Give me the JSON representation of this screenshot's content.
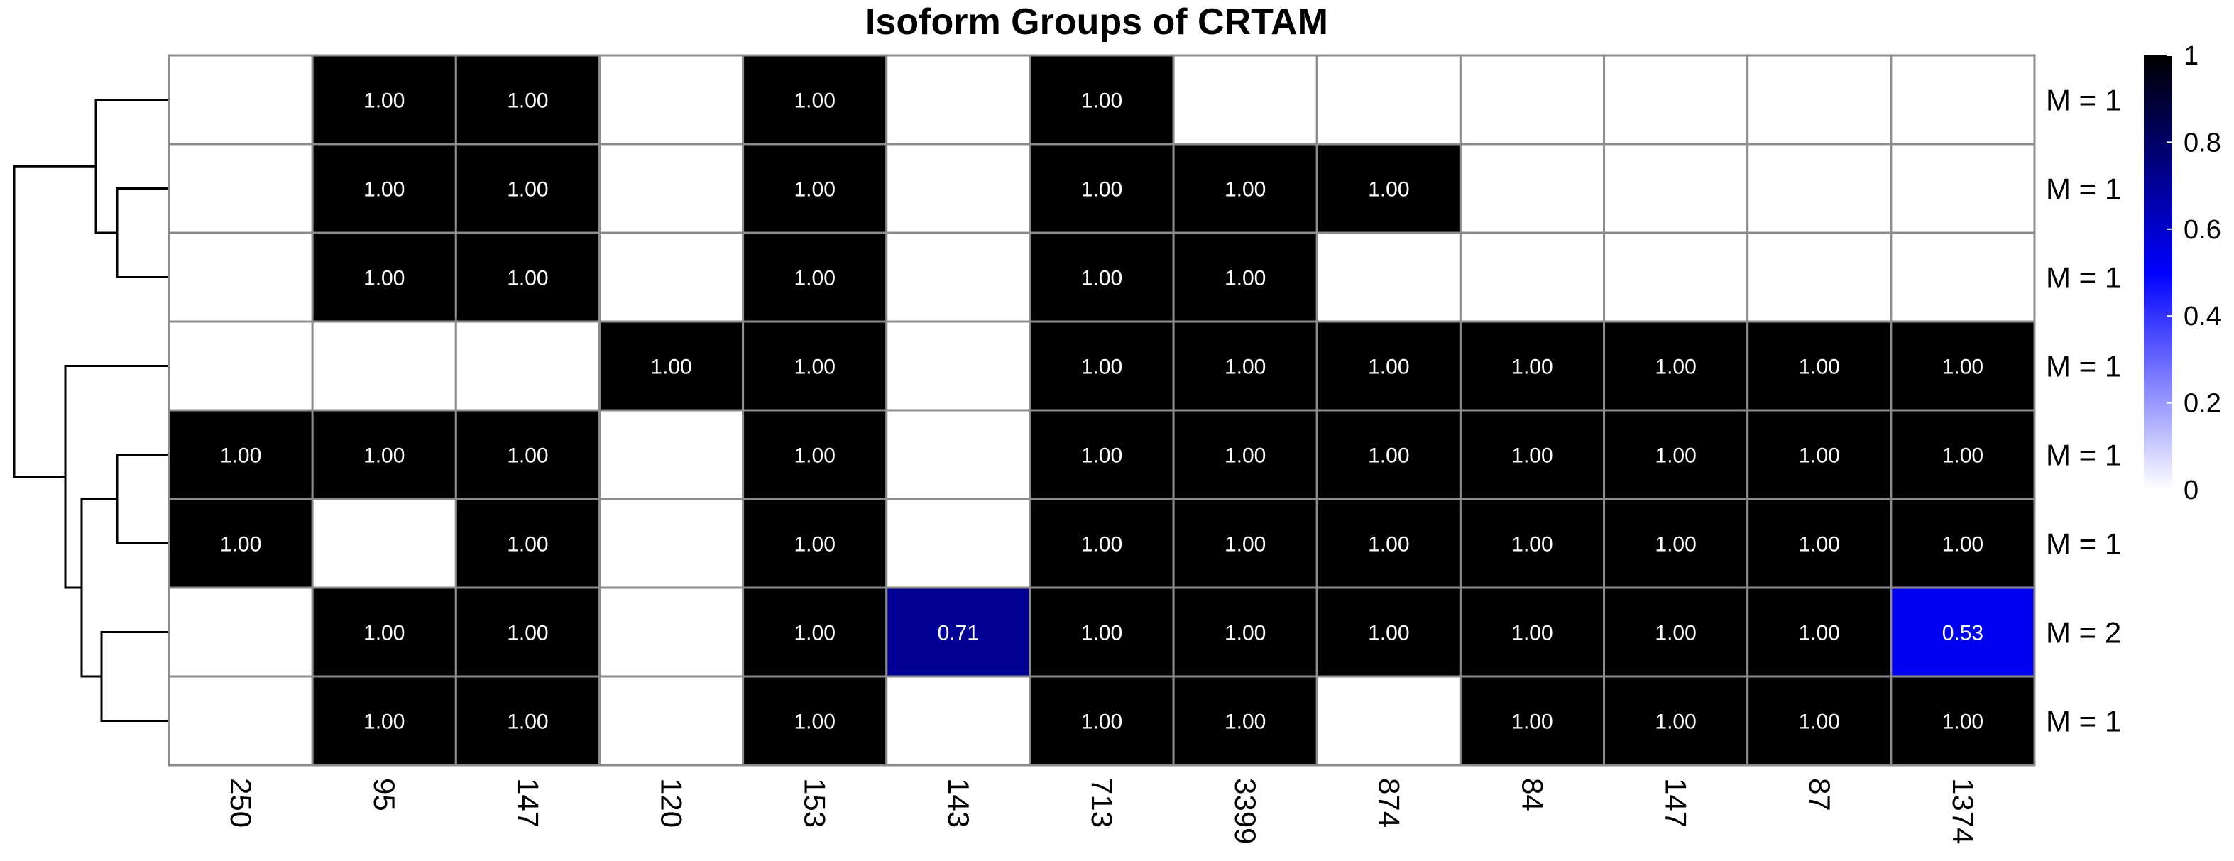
{
  "chart_data": {
    "type": "heatmap",
    "title": "Isoform Groups of CRTAM",
    "columns": [
      "250",
      "95",
      "147",
      "120",
      "153",
      "143",
      "713",
      "3399",
      "874",
      "84",
      "147",
      "87",
      "1374"
    ],
    "row_labels": [
      "M = 1",
      "M = 1",
      "M = 1",
      "M = 1",
      "M = 1",
      "M = 1",
      "M = 2",
      "M = 1"
    ],
    "values": [
      [
        null,
        1.0,
        1.0,
        null,
        1.0,
        null,
        1.0,
        null,
        null,
        null,
        null,
        null,
        null
      ],
      [
        null,
        1.0,
        1.0,
        null,
        1.0,
        null,
        1.0,
        1.0,
        1.0,
        null,
        null,
        null,
        null
      ],
      [
        null,
        1.0,
        1.0,
        null,
        1.0,
        null,
        1.0,
        1.0,
        null,
        null,
        null,
        null,
        null
      ],
      [
        null,
        null,
        null,
        1.0,
        1.0,
        null,
        1.0,
        1.0,
        1.0,
        1.0,
        1.0,
        1.0,
        1.0
      ],
      [
        1.0,
        1.0,
        1.0,
        null,
        1.0,
        null,
        1.0,
        1.0,
        1.0,
        1.0,
        1.0,
        1.0,
        1.0
      ],
      [
        1.0,
        null,
        1.0,
        null,
        1.0,
        null,
        1.0,
        1.0,
        1.0,
        1.0,
        1.0,
        1.0,
        1.0
      ],
      [
        null,
        1.0,
        1.0,
        null,
        1.0,
        0.71,
        1.0,
        1.0,
        1.0,
        1.0,
        1.0,
        1.0,
        0.53
      ],
      [
        null,
        1.0,
        1.0,
        null,
        1.0,
        null,
        1.0,
        1.0,
        null,
        1.0,
        1.0,
        1.0,
        1.0
      ]
    ],
    "color_scale": {
      "range": [
        0,
        1
      ],
      "ticks": [
        "0",
        "0.2",
        "0.4",
        "0.6",
        "0.8",
        "1"
      ],
      "colors": {
        "low": "#ffffff",
        "mid": "#0000ff",
        "high": "#000000"
      }
    },
    "grid": true,
    "legend": "right",
    "row_dendrogram": true
  }
}
